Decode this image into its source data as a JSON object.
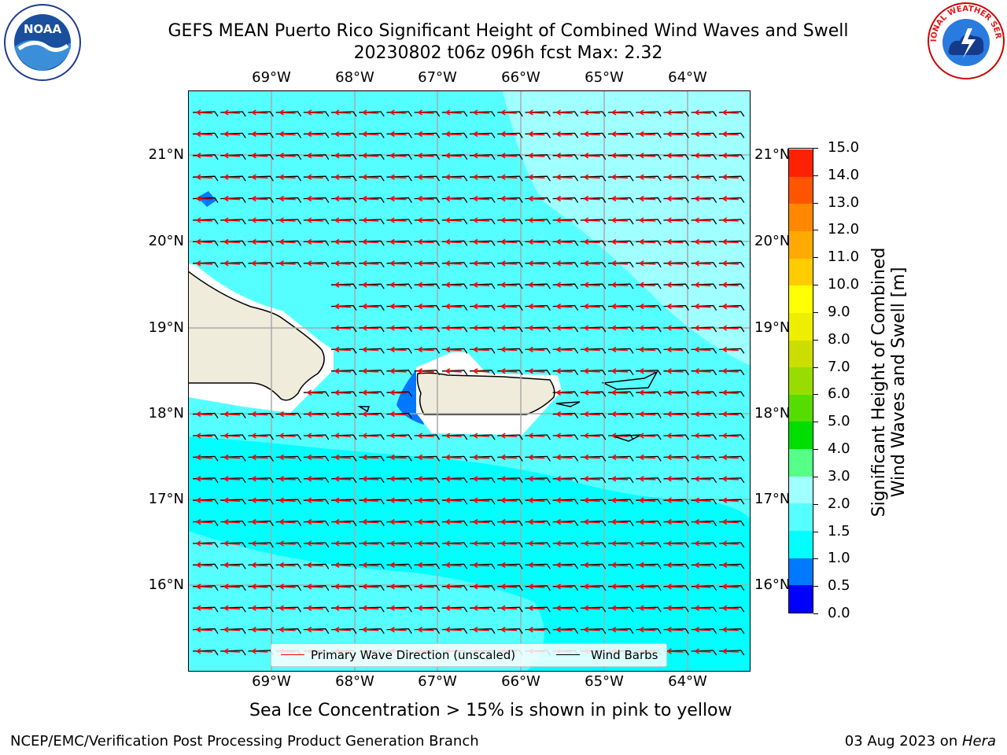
{
  "header": {
    "title_line1": "GEFS MEAN Puerto Rico Significant Height of Combined Wind Waves and Swell",
    "title_line2": "20230802 t06z 096h fcst   Max: 2.32"
  },
  "logos": {
    "noaa": {
      "text": "NOAA",
      "ring_text": "NATIONAL OCEANIC AND ATMOSPHERIC ADMINISTRATION · U.S. DEPARTMENT OF COMMERCE"
    },
    "nws": {
      "ring_text": "NATIONAL WEATHER SERVICE"
    }
  },
  "map": {
    "lon_labels": [
      "69°W",
      "68°W",
      "67°W",
      "66°W",
      "65°W",
      "64°W"
    ],
    "lat_labels": [
      "21°N",
      "20°N",
      "19°N",
      "18°N",
      "17°N",
      "16°N"
    ],
    "ocean_color": "#00ffff",
    "light_color": "#66ffff",
    "lighter_color": "#a0ffff",
    "land_color": "#efecdc",
    "arrow_color": "#ff0000",
    "barb_color": "#000000"
  },
  "legend": {
    "wave_dir_label": "Primary Wave Direction (unscaled)",
    "wind_barbs_label": "Wind Barbs"
  },
  "colorbar": {
    "title_line1": "Significant Height of Combined",
    "title_line2": "Wind Waves and Swell [m]",
    "labels": [
      "0.0",
      "0.5",
      "1.0",
      "1.5",
      "2.0",
      "3.0",
      "4.0",
      "5.0",
      "6.0",
      "7.0",
      "8.0",
      "9.0",
      "10.0",
      "11.0",
      "12.0",
      "13.0",
      "14.0",
      "15.0"
    ],
    "colors": [
      "#0000ff",
      "#0078ff",
      "#00ffff",
      "#55ffff",
      "#a0ffff",
      "#55ff88",
      "#00dd00",
      "#55dd00",
      "#99dd00",
      "#ccdd00",
      "#eeee00",
      "#ffff00",
      "#ffcc00",
      "#ffaa00",
      "#ff8800",
      "#ff5500",
      "#ff2200"
    ]
  },
  "note": "Sea Ice Concentration > 15% is shown in pink to yellow",
  "footer": {
    "left": "NCEP/EMC/Verification Post Processing Product Generation Branch",
    "right_prefix": "03 Aug 2023 on ",
    "right_machine": "Hera"
  }
}
